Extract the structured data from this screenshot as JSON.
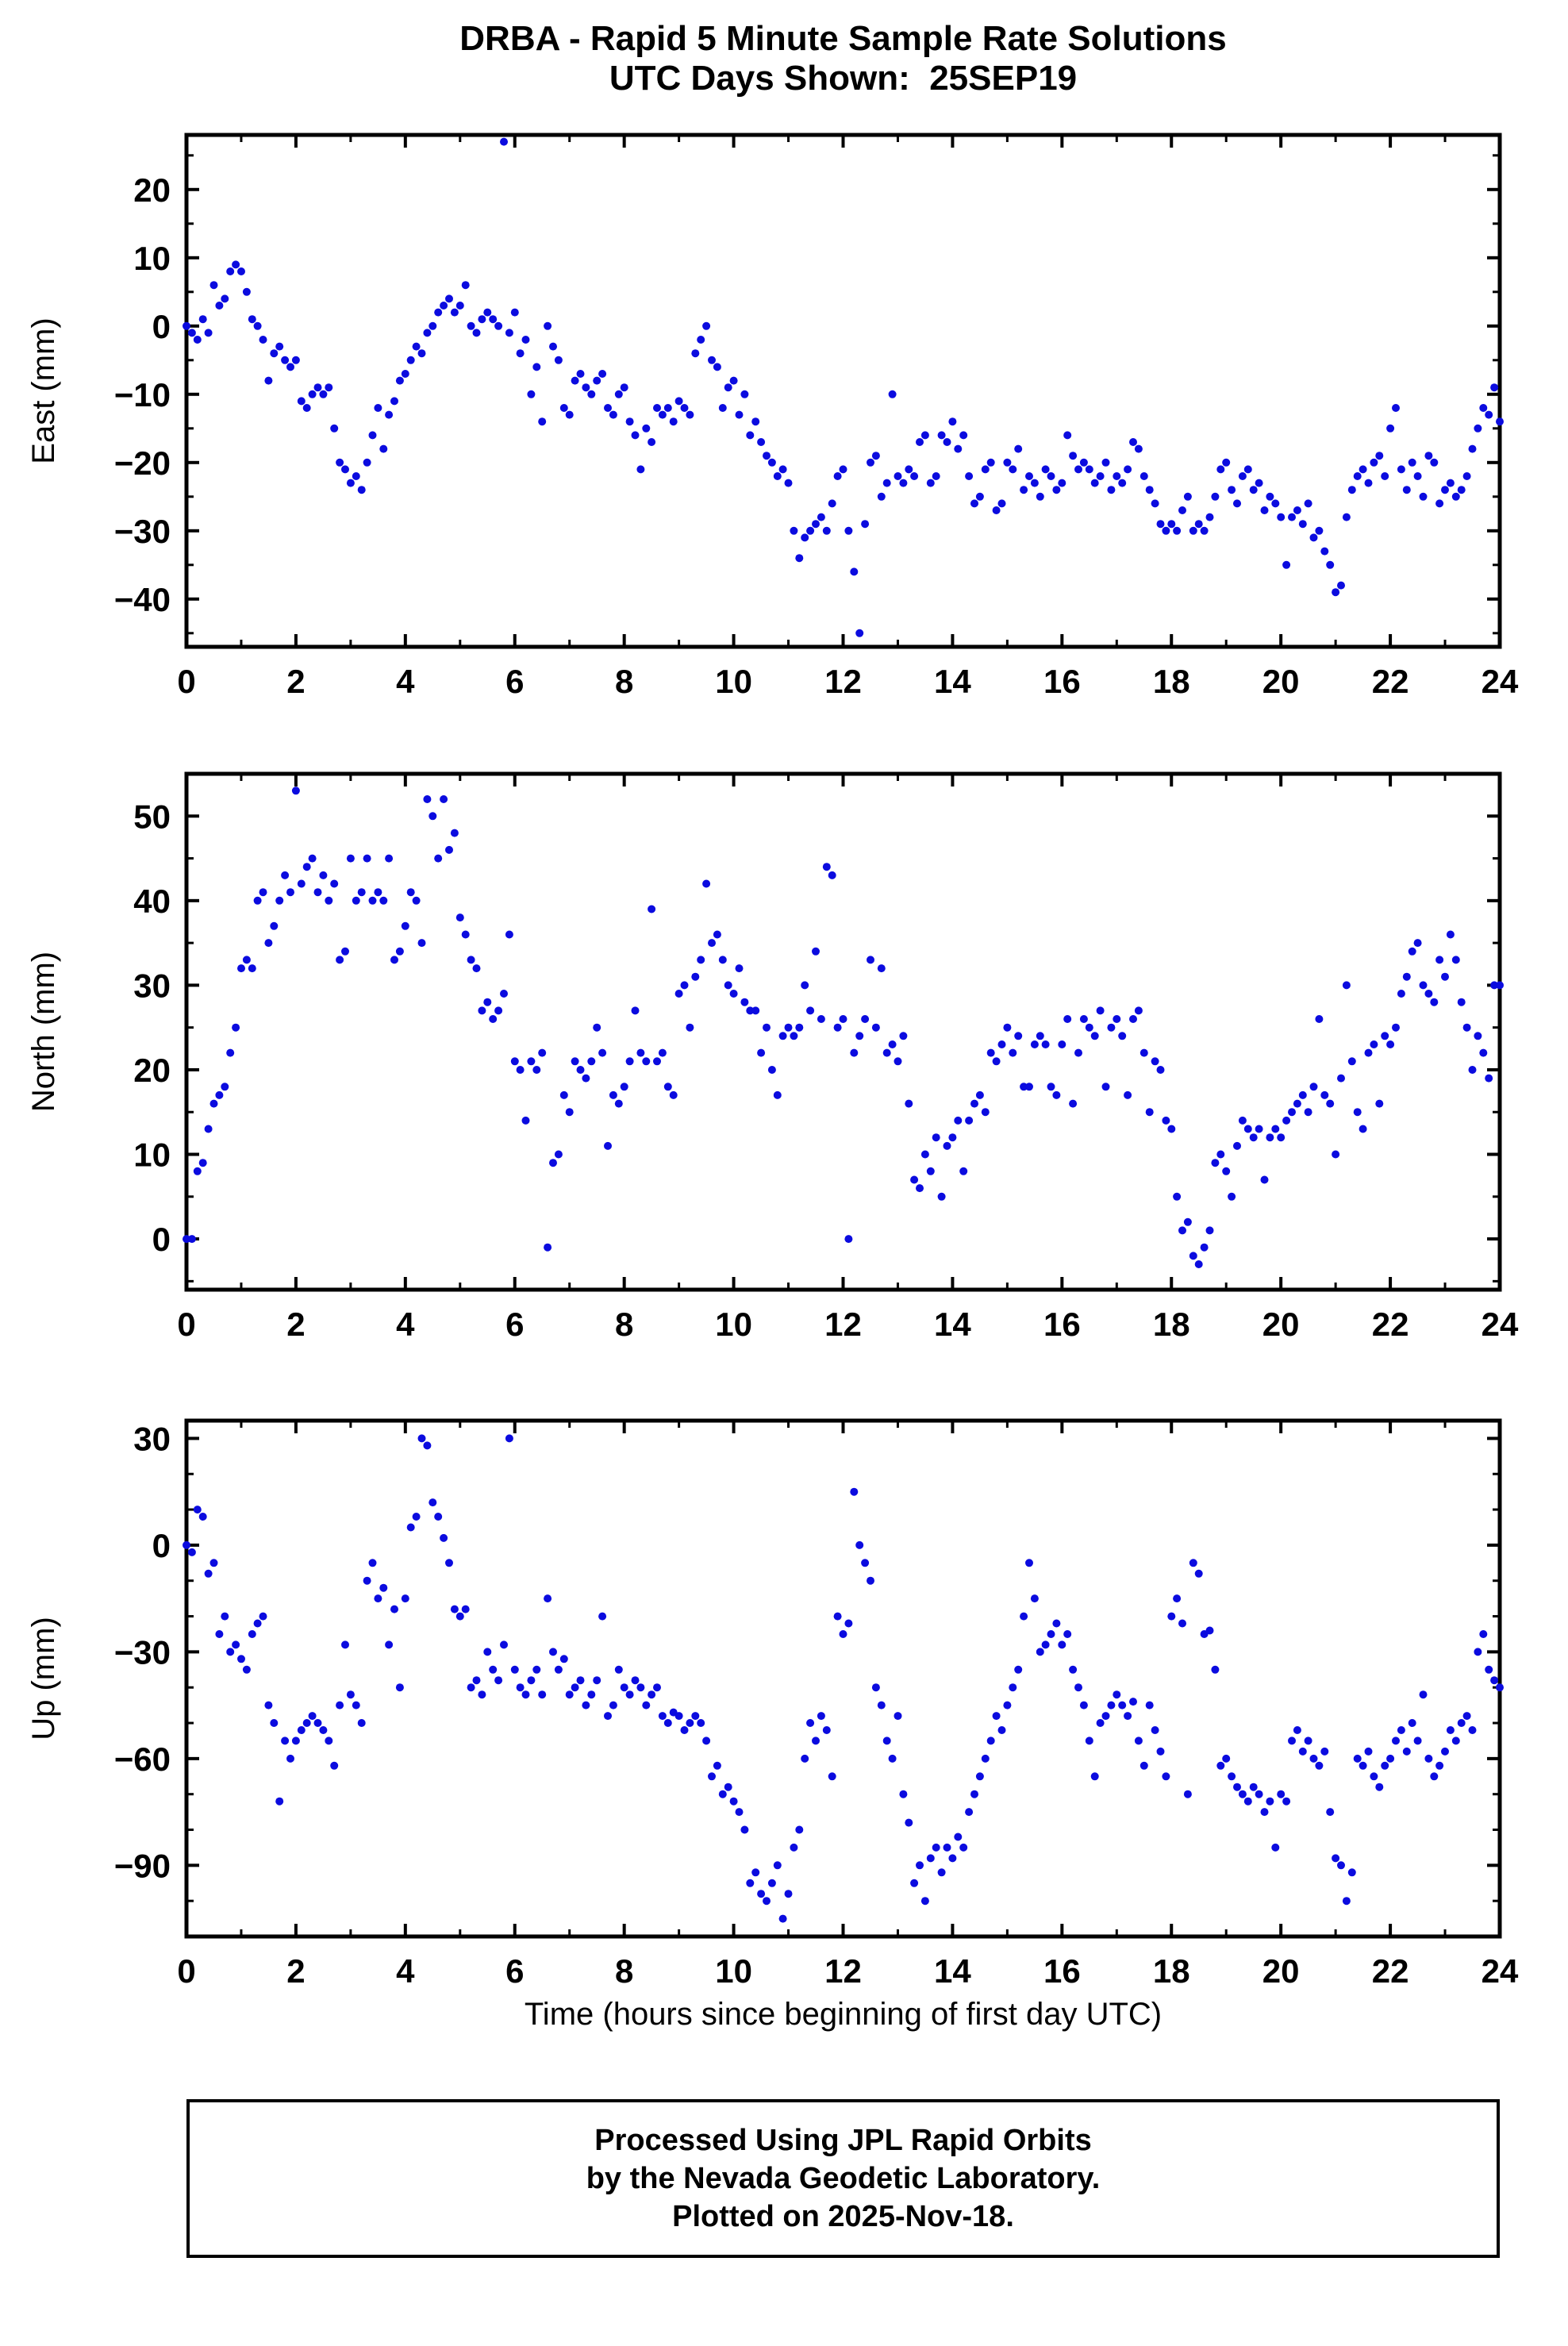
{
  "title_line1": "DRBA - Rapid 5 Minute Sample Rate Solutions",
  "title_line2": "UTC Days Shown:  25SEP19",
  "xlabel": "Time (hours since beginning of first day UTC)",
  "footer": {
    "line1": "Processed Using JPL Rapid Orbits",
    "line2": "by the Nevada Geodetic Laboratory.",
    "line3": "Plotted on 2025-Nov-18."
  },
  "point_color": "#0b0bdf",
  "chart_data": [
    {
      "type": "scatter",
      "name": "east",
      "title": "",
      "ylabel": "East (mm)",
      "xlim": [
        0,
        24
      ],
      "ylim": [
        -47,
        28
      ],
      "xticks": [
        0,
        2,
        4,
        6,
        8,
        10,
        12,
        14,
        16,
        18,
        20,
        22,
        24
      ],
      "xminor_step": 1,
      "yticks": [
        -40,
        -30,
        -20,
        -10,
        0,
        10,
        20
      ],
      "yminor_step": 5,
      "x_start": 0,
      "x_step": 0.1,
      "values": [
        0,
        -1,
        -2,
        1,
        -1,
        6,
        3,
        4,
        8,
        9,
        8,
        5,
        1,
        0,
        -2,
        -8,
        -4,
        -3,
        -5,
        -6,
        -5,
        -11,
        -12,
        -10,
        -9,
        -10,
        -9,
        -15,
        -20,
        -21,
        -23,
        -22,
        -24,
        -20,
        -16,
        -12,
        -18,
        -13,
        -11,
        -8,
        -7,
        -5,
        -3,
        -4,
        -1,
        0,
        2,
        3,
        4,
        2,
        3,
        6,
        0,
        -1,
        1,
        2,
        1,
        0,
        27,
        -1,
        2,
        -4,
        -2,
        -10,
        -6,
        -14,
        0,
        -3,
        -5,
        -12,
        -13,
        -8,
        -7,
        -9,
        -10,
        -8,
        -7,
        -12,
        -13,
        -10,
        -9,
        -14,
        -16,
        -21,
        -15,
        -17,
        -12,
        -13,
        -12,
        -14,
        -11,
        -12,
        -13,
        -4,
        -2,
        0,
        -5,
        -6,
        -12,
        -9,
        -8,
        -13,
        -10,
        -16,
        -14,
        -17,
        -19,
        -20,
        -22,
        -21,
        -23,
        -30,
        -34,
        -31,
        -30,
        -29,
        -28,
        -30,
        -26,
        -22,
        -21,
        -30,
        -36,
        -45,
        -29,
        -20,
        -19,
        -25,
        -23,
        -10,
        -22,
        -23,
        -21,
        -22,
        -17,
        -16,
        -23,
        -22,
        -16,
        -17,
        -14,
        -18,
        -16,
        -22,
        -26,
        -25,
        -21,
        -20,
        -27,
        -26,
        -20,
        -21,
        -18,
        -24,
        -22,
        -23,
        -25,
        -21,
        -22,
        -24,
        -23,
        -16,
        -19,
        -21,
        -20,
        -21,
        -23,
        -22,
        -20,
        -24,
        -22,
        -23,
        -21,
        -17,
        -18,
        -22,
        -24,
        -26,
        -29,
        -30,
        -29,
        -30,
        -27,
        -25,
        -30,
        -29,
        -30,
        -28,
        -25,
        -21,
        -20,
        -24,
        -26,
        -22,
        -21,
        -24,
        -23,
        -27,
        -25,
        -26,
        -28,
        -35,
        -28,
        -27,
        -29,
        -26,
        -31,
        -30,
        -33,
        -35,
        -39,
        -38,
        -28,
        -24,
        -22,
        -21,
        -23,
        -20,
        -19,
        -22,
        -15,
        -12,
        -21,
        -24,
        -20,
        -22,
        -25,
        -19,
        -20,
        -26,
        -24,
        -23,
        -25,
        -24,
        -22,
        -18,
        -15,
        -12,
        -13,
        -9,
        -14
      ]
    },
    {
      "type": "scatter",
      "name": "north",
      "title": "",
      "ylabel": "North (mm)",
      "xlim": [
        0,
        24
      ],
      "ylim": [
        -6,
        55
      ],
      "xticks": [
        0,
        2,
        4,
        6,
        8,
        10,
        12,
        14,
        16,
        18,
        20,
        22,
        24
      ],
      "xminor_step": 1,
      "yticks": [
        0,
        10,
        20,
        30,
        40,
        50
      ],
      "yminor_step": 5,
      "x_start": 0,
      "x_step": 0.1,
      "values": [
        0,
        0,
        8,
        9,
        13,
        16,
        17,
        18,
        22,
        25,
        32,
        33,
        32,
        40,
        41,
        35,
        37,
        40,
        43,
        41,
        53,
        42,
        44,
        45,
        41,
        43,
        40,
        42,
        33,
        34,
        45,
        40,
        41,
        45,
        40,
        41,
        40,
        45,
        33,
        34,
        37,
        41,
        40,
        35,
        52,
        50,
        45,
        52,
        46,
        48,
        38,
        36,
        33,
        32,
        27,
        28,
        26,
        27,
        29,
        36,
        21,
        20,
        14,
        21,
        20,
        22,
        -1,
        9,
        10,
        17,
        15,
        21,
        20,
        19,
        21,
        25,
        22,
        11,
        17,
        16,
        18,
        21,
        27,
        22,
        21,
        39,
        21,
        22,
        18,
        17,
        29,
        30,
        25,
        31,
        33,
        42,
        35,
        36,
        33,
        30,
        29,
        32,
        28,
        27,
        27,
        22,
        25,
        20,
        17,
        24,
        25,
        24,
        25,
        30,
        27,
        34,
        26,
        44,
        43,
        25,
        26,
        0,
        22,
        24,
        26,
        33,
        25,
        32,
        22,
        23,
        21,
        24,
        16,
        7,
        6,
        10,
        8,
        12,
        5,
        11,
        12,
        14,
        8,
        14,
        16,
        17,
        15,
        22,
        21,
        23,
        25,
        22,
        24,
        18,
        18,
        23,
        24,
        23,
        18,
        17,
        23,
        26,
        16,
        22,
        26,
        25,
        24,
        27,
        18,
        25,
        26,
        24,
        17,
        26,
        27,
        22,
        15,
        21,
        20,
        14,
        13,
        5,
        1,
        2,
        -2,
        -3,
        -1,
        1,
        9,
        10,
        8,
        5,
        11,
        14,
        13,
        12,
        13,
        7,
        12,
        13,
        12,
        14,
        15,
        16,
        17,
        15,
        18,
        26,
        17,
        16,
        10,
        19,
        30,
        21,
        15,
        13,
        22,
        23,
        16,
        24,
        23,
        25,
        29,
        31,
        34,
        35,
        30,
        29,
        28,
        33,
        31,
        36,
        33,
        28,
        25,
        20,
        24,
        22,
        19,
        30,
        30
      ]
    },
    {
      "type": "scatter",
      "name": "up",
      "title": "",
      "ylabel": "Up (mm)",
      "xlim": [
        0,
        24
      ],
      "ylim": [
        -110,
        35
      ],
      "xticks": [
        0,
        2,
        4,
        6,
        8,
        10,
        12,
        14,
        16,
        18,
        20,
        22,
        24
      ],
      "xminor_step": 1,
      "yticks": [
        -90,
        -60,
        -30,
        0,
        30
      ],
      "yminor_step": 10,
      "x_start": 0,
      "x_step": 0.1,
      "values": [
        0,
        -2,
        10,
        8,
        -8,
        -5,
        -25,
        -20,
        -30,
        -28,
        -32,
        -35,
        -25,
        -22,
        -20,
        -45,
        -50,
        -72,
        -55,
        -60,
        -55,
        -52,
        -50,
        -48,
        -50,
        -52,
        -55,
        -62,
        -45,
        -28,
        -42,
        -45,
        -50,
        -10,
        -5,
        -15,
        -12,
        -28,
        -18,
        -40,
        -15,
        5,
        8,
        30,
        28,
        12,
        8,
        2,
        -5,
        -18,
        -20,
        -18,
        -40,
        -38,
        -42,
        -30,
        -35,
        -38,
        -28,
        30,
        -35,
        -40,
        -42,
        -38,
        -35,
        -42,
        -15,
        -30,
        -35,
        -32,
        -42,
        -40,
        -38,
        -45,
        -42,
        -38,
        -20,
        -48,
        -45,
        -35,
        -40,
        -42,
        -38,
        -40,
        -45,
        -42,
        -40,
        -48,
        -50,
        -47,
        -48,
        -52,
        -50,
        -48,
        -50,
        -55,
        -65,
        -62,
        -70,
        -68,
        -72,
        -75,
        -80,
        -95,
        -92,
        -98,
        -100,
        -95,
        -90,
        -105,
        -98,
        -85,
        -80,
        -60,
        -50,
        -55,
        -48,
        -52,
        -65,
        -20,
        -25,
        -22,
        15,
        0,
        -5,
        -10,
        -40,
        -45,
        -55,
        -60,
        -48,
        -70,
        -78,
        -95,
        -90,
        -100,
        -88,
        -85,
        -92,
        -85,
        -88,
        -82,
        -85,
        -75,
        -70,
        -65,
        -60,
        -55,
        -48,
        -52,
        -45,
        -40,
        -35,
        -20,
        -5,
        -15,
        -30,
        -28,
        -25,
        -22,
        -28,
        -25,
        -35,
        -40,
        -45,
        -55,
        -65,
        -50,
        -48,
        -45,
        -42,
        -45,
        -48,
        -44,
        -55,
        -62,
        -45,
        -52,
        -58,
        -65,
        -20,
        -15,
        -22,
        -70,
        -5,
        -8,
        -25,
        -24,
        -35,
        -62,
        -60,
        -65,
        -68,
        -70,
        -72,
        -68,
        -70,
        -75,
        -72,
        -85,
        -70,
        -72,
        -55,
        -52,
        -58,
        -55,
        -60,
        -62,
        -58,
        -75,
        -88,
        -90,
        -100,
        -92,
        -60,
        -62,
        -58,
        -65,
        -68,
        -62,
        -60,
        -55,
        -52,
        -58,
        -50,
        -55,
        -42,
        -60,
        -65,
        -62,
        -58,
        -52,
        -55,
        -50,
        -48,
        -52,
        -30,
        -25,
        -35,
        -38,
        -40
      ]
    }
  ]
}
